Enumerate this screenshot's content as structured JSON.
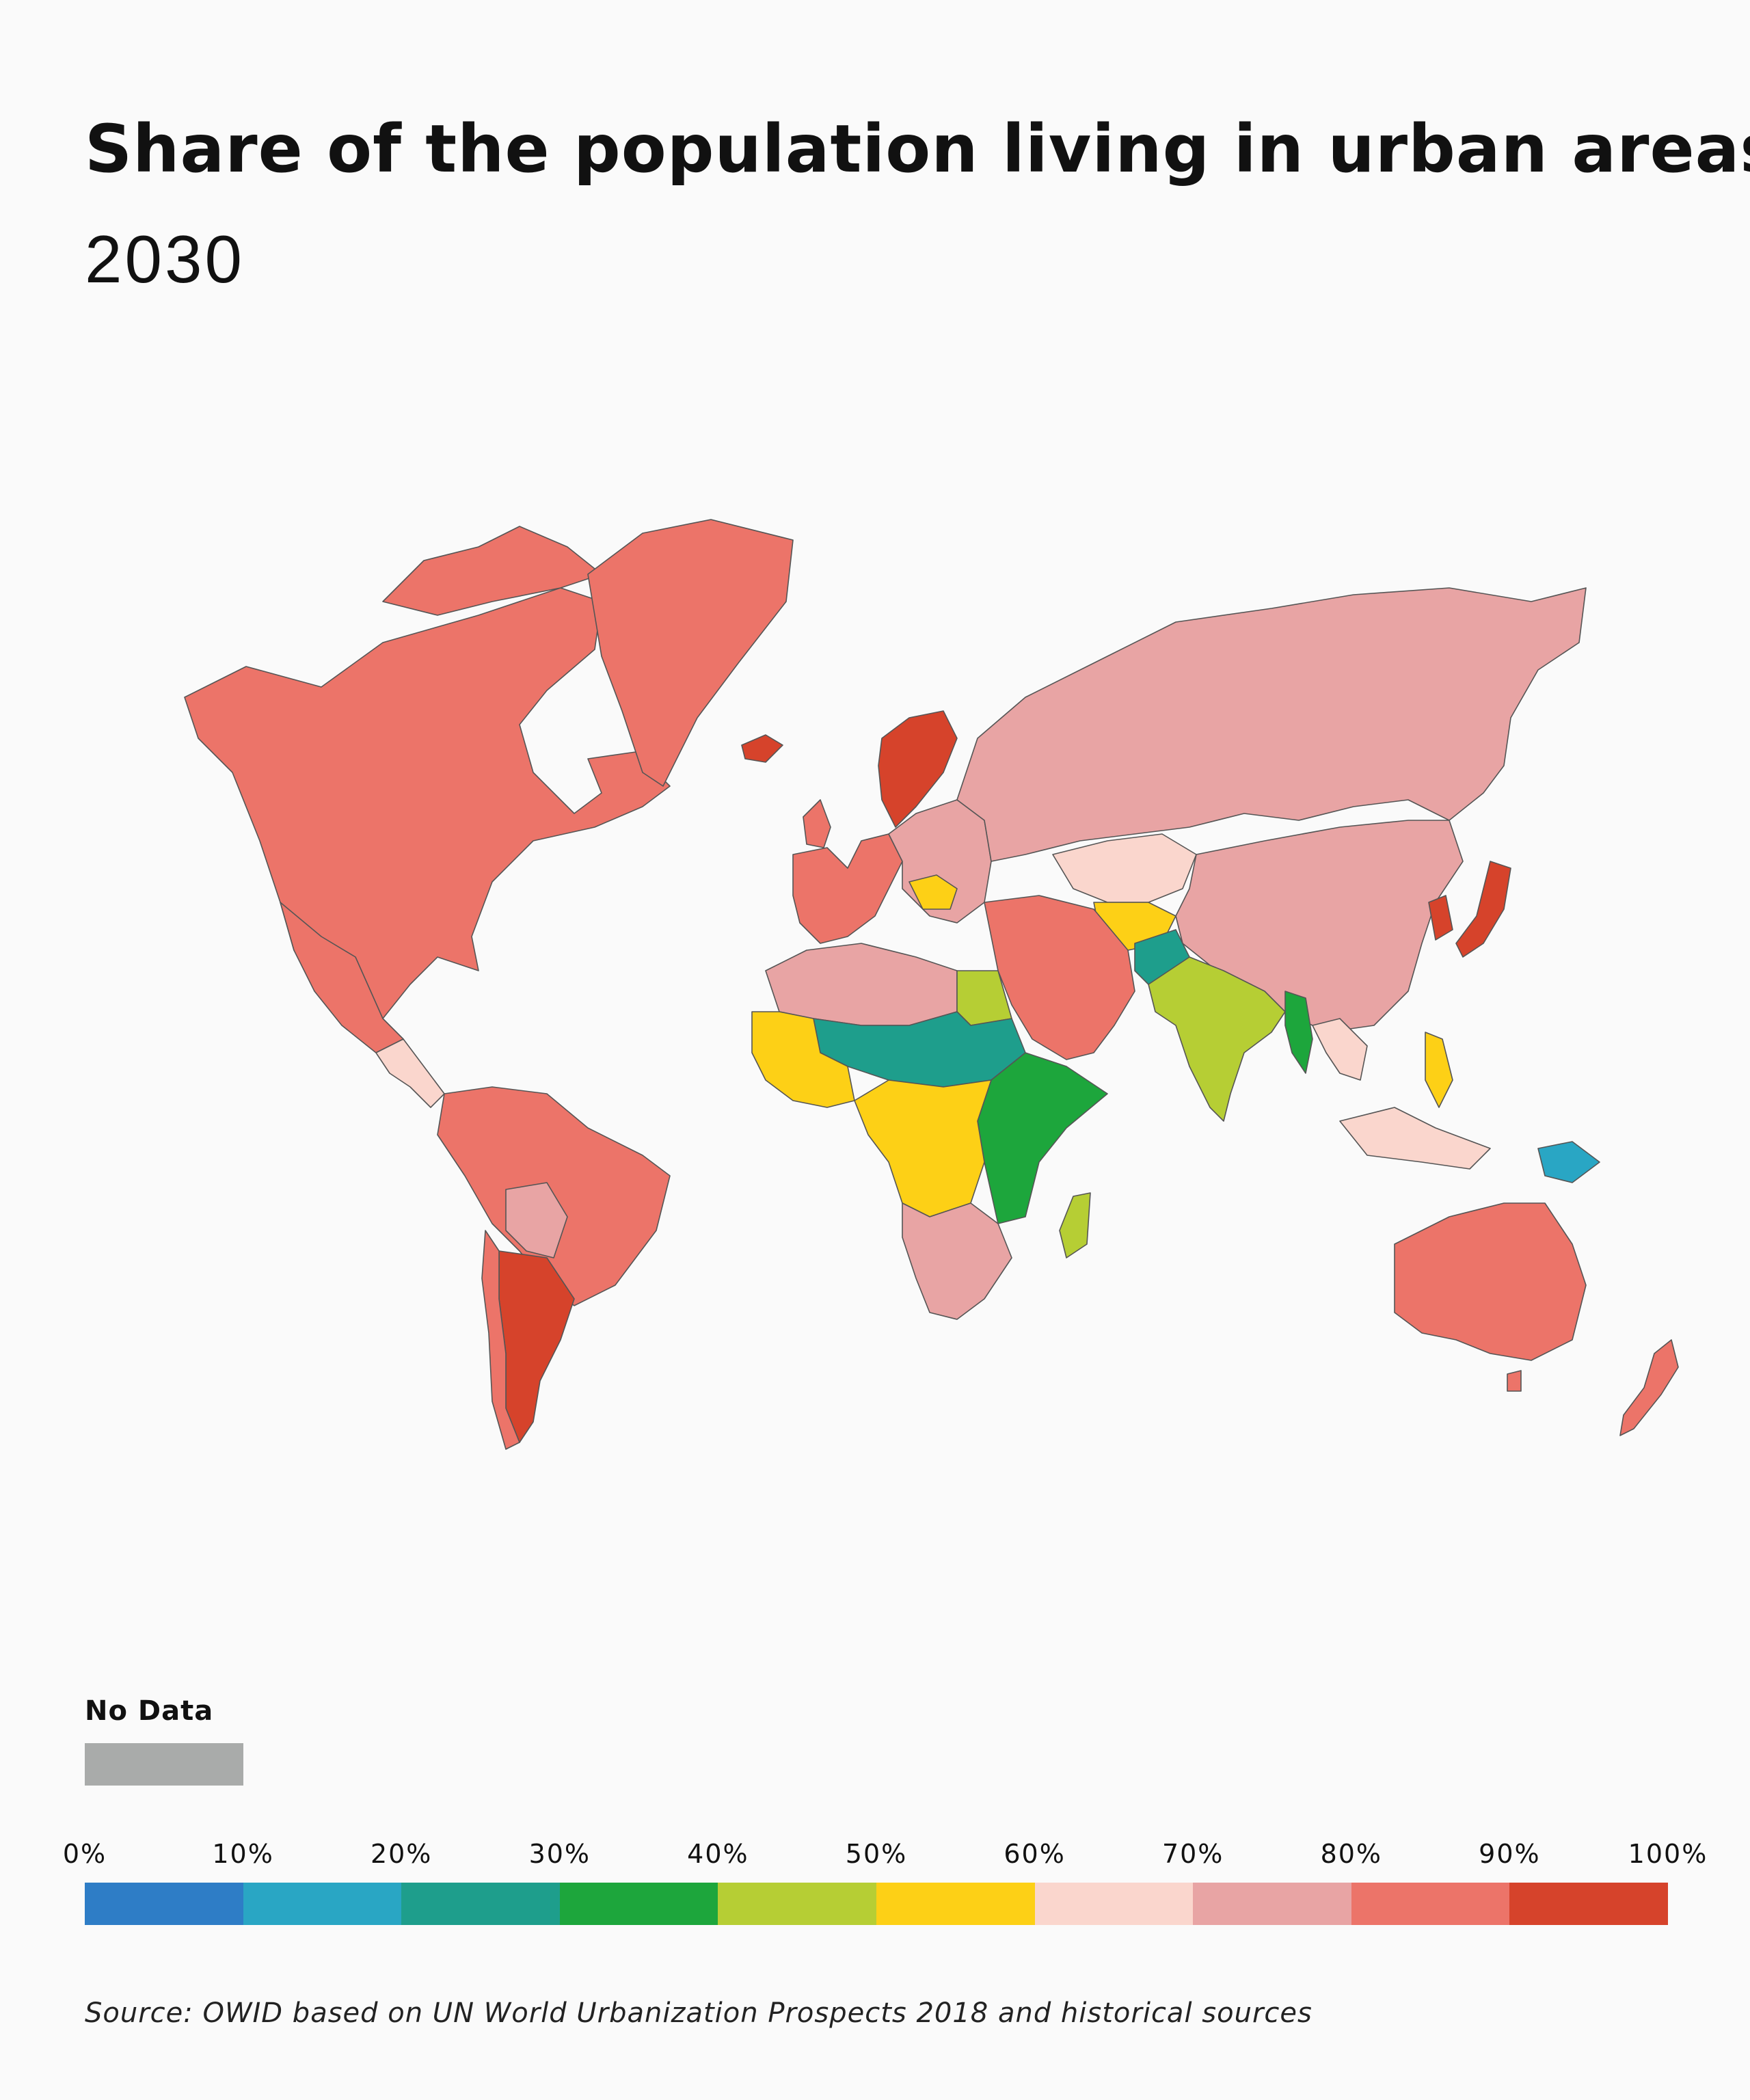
{
  "title": "Share of the population living in urban areas",
  "subtitle": "2030",
  "legend": {
    "no_data_label": "No Data",
    "no_data_color": "#a9abaa",
    "ticks": [
      "0%",
      "10%",
      "20%",
      "30%",
      "40%",
      "50%",
      "60%",
      "70%",
      "80%",
      "90%",
      "100%"
    ],
    "bins": [
      {
        "range": "0–10%",
        "color": "#2e7dc6"
      },
      {
        "range": "10–20%",
        "color": "#29a6c4"
      },
      {
        "range": "20–30%",
        "color": "#1e9e8c"
      },
      {
        "range": "30–40%",
        "color": "#1da63c"
      },
      {
        "range": "40–50%",
        "color": "#b6ce34"
      },
      {
        "range": "50–60%",
        "color": "#fdd016"
      },
      {
        "range": "60–70%",
        "color": "#fad6cd"
      },
      {
        "range": "70–80%",
        "color": "#e8a4a4"
      },
      {
        "range": "80–90%",
        "color": "#ec7469"
      },
      {
        "range": "90–100%",
        "color": "#d6432b"
      }
    ]
  },
  "map": {
    "regions": [
      {
        "region": "North America",
        "bin": "80–90%"
      },
      {
        "region": "Greenland",
        "bin": "80–90%"
      },
      {
        "region": "Central America",
        "bin": "60–70%"
      },
      {
        "region": "South America",
        "bin": "80–90%"
      },
      {
        "region": "Argentina and Uruguay",
        "bin": "90–100%"
      },
      {
        "region": "Bolivia and Paraguay",
        "bin": "70–80%"
      },
      {
        "region": "Western Europe",
        "bin": "80–90%"
      },
      {
        "region": "Scandinavia",
        "bin": "90–100%"
      },
      {
        "region": "Eastern Europe",
        "bin": "70–80%"
      },
      {
        "region": "Russia",
        "bin": "70–80%"
      },
      {
        "region": "China and Mongolia",
        "bin": "70–80%"
      },
      {
        "region": "Kazakhstan",
        "bin": "60–70%"
      },
      {
        "region": "Central Asia",
        "bin": "50–60%"
      },
      {
        "region": "Afghanistan",
        "bin": "20–30%"
      },
      {
        "region": "India",
        "bin": "40–50%"
      },
      {
        "region": "Myanmar",
        "bin": "30–40%"
      },
      {
        "region": "Japan and Korea",
        "bin": "90–100%"
      },
      {
        "region": "Middle East",
        "bin": "80–90%"
      },
      {
        "region": "North Africa",
        "bin": "70–80%"
      },
      {
        "region": "Egypt",
        "bin": "40–50%"
      },
      {
        "region": "Sahel",
        "bin": "20–30%"
      },
      {
        "region": "West Africa",
        "bin": "50–60%"
      },
      {
        "region": "East Africa",
        "bin": "30–40%"
      },
      {
        "region": "Central Africa",
        "bin": "50–60%"
      },
      {
        "region": "Southern Africa",
        "bin": "70–80%"
      },
      {
        "region": "Madagascar",
        "bin": "40–50%"
      },
      {
        "region": "Southeast Asia",
        "bin": "60–70%"
      },
      {
        "region": "Philippines",
        "bin": "50–60%"
      },
      {
        "region": "Papua New Guinea",
        "bin": "10–20%"
      },
      {
        "region": "Australia and New Zealand",
        "bin": "80–90%"
      }
    ]
  },
  "source": "Source: OWID based on UN World Urbanization Prospects 2018 and historical sources"
}
